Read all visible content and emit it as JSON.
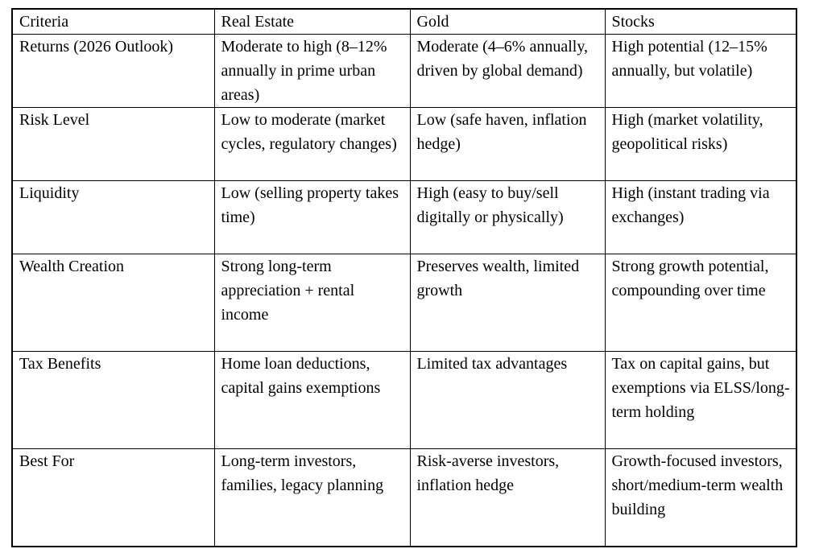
{
  "table": {
    "headers": [
      "Criteria",
      "Real Estate",
      "Gold",
      "Stocks"
    ],
    "rows": [
      {
        "criteria": "Returns (2026 Outlook)",
        "real_estate": "Moderate to high (8–12% annually in prime urban areas)",
        "gold": "Moderate (4–6% annually, driven by global demand)",
        "stocks": "High potential (12–15% annually, but volatile)"
      },
      {
        "criteria": "Risk Level",
        "real_estate": "Low to moderate (market cycles, regulatory changes)",
        "gold": "Low (safe haven, inflation hedge)",
        "stocks": "High (market volatility, geopolitical risks)"
      },
      {
        "criteria": "Liquidity",
        "real_estate": "Low (selling property takes time)",
        "gold": "High (easy to buy/sell digitally or physically)",
        "stocks": "High (instant trading via exchanges)"
      },
      {
        "criteria": "Wealth Creation",
        "real_estate": "Strong long-term appreciation + rental income",
        "gold": "Preserves wealth, limited growth",
        "stocks": "Strong growth potential, compounding over time"
      },
      {
        "criteria": "Tax Benefits",
        "real_estate": "Home loan deductions, capital gains exemptions",
        "gold": "Limited tax advantages",
        "stocks": "Tax on capital gains, but exemptions via ELSS/long-term holding"
      },
      {
        "criteria": "Best For",
        "real_estate": "Long-term investors, families, legacy planning",
        "gold": "Risk-averse investors, inflation hedge",
        "stocks": "Growth-focused investors, short/medium-term wealth building"
      }
    ]
  },
  "colors": {
    "border": "#000000",
    "text": "#000000",
    "background": "#ffffff"
  }
}
